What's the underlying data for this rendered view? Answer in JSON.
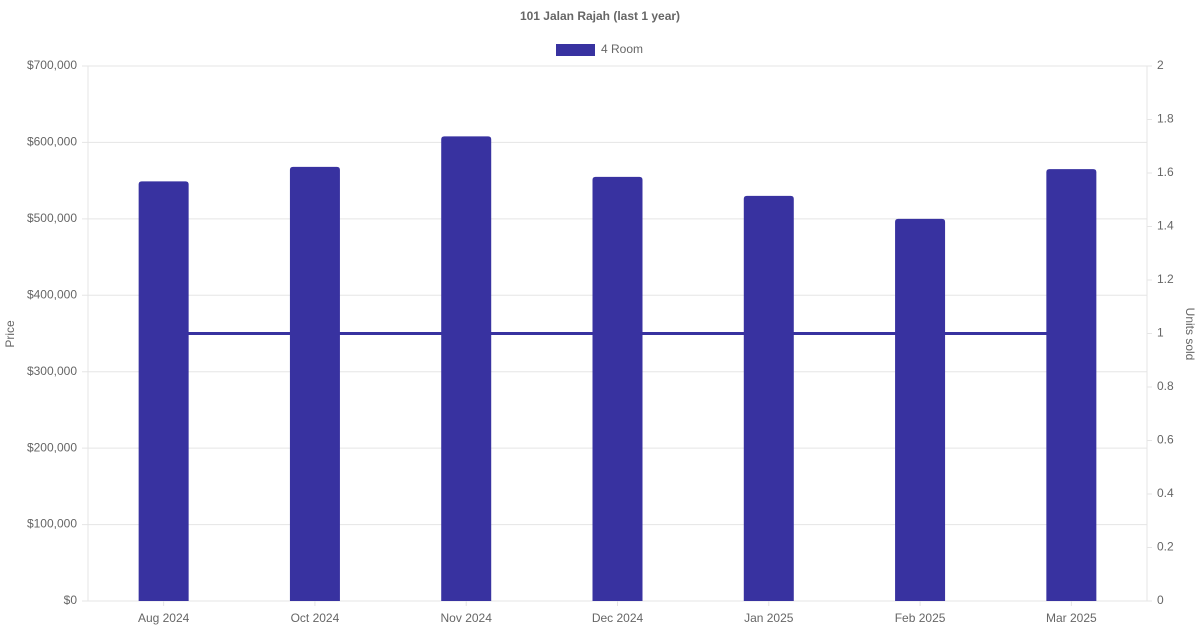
{
  "chart_data": {
    "type": "bar",
    "title": "101 Jalan Rajah (last 1 year)",
    "categories": [
      "Aug 2024",
      "Oct 2024",
      "Nov 2024",
      "Dec 2024",
      "Jan 2025",
      "Feb 2025",
      "Mar 2025"
    ],
    "series": [
      {
        "name": "4 Room",
        "type": "bar",
        "color": "#3832a0",
        "values": [
          549000,
          568000,
          608000,
          555000,
          530000,
          500000,
          565000
        ]
      },
      {
        "type": "line",
        "axis": "y2",
        "color": "#3832a0",
        "values": [
          1,
          1,
          1,
          1,
          1,
          1,
          1
        ]
      }
    ],
    "y_label": "Price",
    "y2_label": "Units sold",
    "ylim": [
      0,
      700000
    ],
    "yticks": [
      {
        "value": 0,
        "label": "$0"
      },
      {
        "value": 100000,
        "label": "$100,000"
      },
      {
        "value": 200000,
        "label": "$200,000"
      },
      {
        "value": 300000,
        "label": "$300,000"
      },
      {
        "value": 400000,
        "label": "$400,000"
      },
      {
        "value": 500000,
        "label": "$500,000"
      },
      {
        "value": 600000,
        "label": "$600,000"
      },
      {
        "value": 700000,
        "label": "$700,000"
      }
    ],
    "y2lim": [
      0,
      2
    ],
    "y2ticks": [
      0,
      0.2,
      0.4,
      0.6,
      0.8,
      1,
      1.2,
      1.4,
      1.6,
      1.8,
      2
    ],
    "grid": true,
    "legend": "top"
  }
}
